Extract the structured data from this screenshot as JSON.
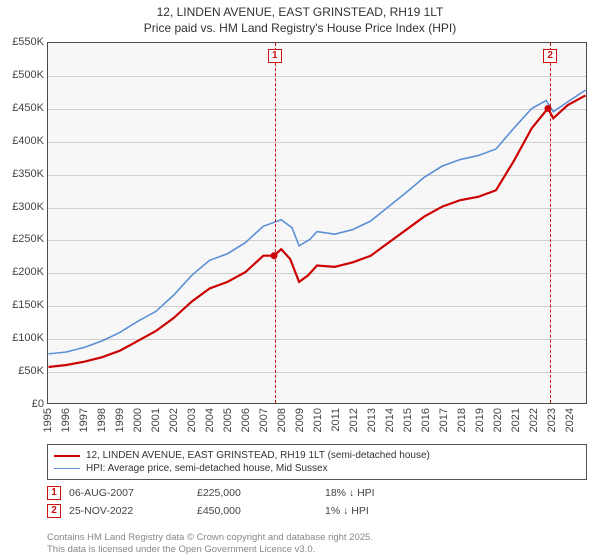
{
  "title": {
    "line1": "12, LINDEN AVENUE, EAST GRINSTEAD, RH19 1LT",
    "line2": "Price paid vs. HM Land Registry's House Price Index (HPI)"
  },
  "chart": {
    "type": "line",
    "background_color": "#f7f7f8",
    "border_color": "#4b4b4b",
    "grid_color": "#cfcfd2",
    "x": {
      "min": 1995,
      "max": 2025,
      "ticks": [
        1995,
        1996,
        1997,
        1998,
        1999,
        2000,
        2001,
        2002,
        2003,
        2004,
        2005,
        2006,
        2007,
        2008,
        2009,
        2010,
        2011,
        2012,
        2013,
        2014,
        2015,
        2016,
        2017,
        2018,
        2019,
        2020,
        2021,
        2022,
        2023,
        2024
      ]
    },
    "y": {
      "min": 0,
      "max": 550000,
      "ticks": [
        0,
        50000,
        100000,
        150000,
        200000,
        250000,
        300000,
        350000,
        400000,
        450000,
        500000,
        550000
      ],
      "tick_labels": [
        "£0",
        "£50K",
        "£100K",
        "£150K",
        "£200K",
        "£250K",
        "£300K",
        "£350K",
        "£400K",
        "£450K",
        "£500K",
        "£550K"
      ]
    },
    "series": [
      {
        "name": "property",
        "label": "12, LINDEN AVENUE, EAST GRINSTEAD, RH19 1LT (semi-detached house)",
        "color": "#cc0000",
        "width": 2.2,
        "points": [
          [
            1995,
            55000
          ],
          [
            1996,
            58000
          ],
          [
            1997,
            63000
          ],
          [
            1998,
            70000
          ],
          [
            1999,
            80000
          ],
          [
            2000,
            95000
          ],
          [
            2001,
            110000
          ],
          [
            2002,
            130000
          ],
          [
            2003,
            155000
          ],
          [
            2004,
            175000
          ],
          [
            2005,
            185000
          ],
          [
            2006,
            200000
          ],
          [
            2007,
            225000
          ],
          [
            2007.6,
            225000
          ],
          [
            2008,
            235000
          ],
          [
            2008.5,
            220000
          ],
          [
            2009,
            185000
          ],
          [
            2009.5,
            195000
          ],
          [
            2010,
            210000
          ],
          [
            2011,
            208000
          ],
          [
            2012,
            215000
          ],
          [
            2013,
            225000
          ],
          [
            2014,
            245000
          ],
          [
            2015,
            265000
          ],
          [
            2016,
            285000
          ],
          [
            2017,
            300000
          ],
          [
            2018,
            310000
          ],
          [
            2019,
            315000
          ],
          [
            2020,
            325000
          ],
          [
            2021,
            370000
          ],
          [
            2022,
            420000
          ],
          [
            2022.9,
            450000
          ],
          [
            2023.2,
            435000
          ],
          [
            2024,
            455000
          ],
          [
            2025,
            470000
          ]
        ]
      },
      {
        "name": "hpi",
        "label": "HPI: Average price, semi-detached house, Mid Sussex",
        "color": "#5b8fd6",
        "width": 1.6,
        "points": [
          [
            1995,
            75000
          ],
          [
            1996,
            78000
          ],
          [
            1997,
            85000
          ],
          [
            1998,
            95000
          ],
          [
            1999,
            108000
          ],
          [
            2000,
            125000
          ],
          [
            2001,
            140000
          ],
          [
            2002,
            165000
          ],
          [
            2003,
            195000
          ],
          [
            2004,
            218000
          ],
          [
            2005,
            228000
          ],
          [
            2006,
            245000
          ],
          [
            2007,
            270000
          ],
          [
            2008,
            280000
          ],
          [
            2008.6,
            268000
          ],
          [
            2009,
            240000
          ],
          [
            2009.6,
            250000
          ],
          [
            2010,
            262000
          ],
          [
            2011,
            258000
          ],
          [
            2012,
            265000
          ],
          [
            2013,
            278000
          ],
          [
            2014,
            300000
          ],
          [
            2015,
            322000
          ],
          [
            2016,
            345000
          ],
          [
            2017,
            362000
          ],
          [
            2018,
            372000
          ],
          [
            2019,
            378000
          ],
          [
            2020,
            388000
          ],
          [
            2021,
            420000
          ],
          [
            2022,
            450000
          ],
          [
            2022.8,
            462000
          ],
          [
            2023.2,
            445000
          ],
          [
            2024,
            460000
          ],
          [
            2025,
            478000
          ]
        ]
      }
    ],
    "sale_markers": [
      {
        "id": "1",
        "x": 2007.6,
        "y": 225000
      },
      {
        "id": "2",
        "x": 2022.9,
        "y": 450000
      }
    ]
  },
  "legend": {
    "rows": [
      {
        "color": "#cc0000",
        "width": 2.2,
        "label": "12, LINDEN AVENUE, EAST GRINSTEAD, RH19 1LT (semi-detached house)"
      },
      {
        "color": "#5b8fd6",
        "width": 1.6,
        "label": "HPI: Average price, semi-detached house, Mid Sussex"
      }
    ]
  },
  "annotations": [
    {
      "id": "1",
      "date": "06-AUG-2007",
      "price": "£225,000",
      "delta": "18% ↓ HPI"
    },
    {
      "id": "2",
      "date": "25-NOV-2022",
      "price": "£450,000",
      "delta": "1% ↓ HPI"
    }
  ],
  "footer": {
    "line1": "Contains HM Land Registry data © Crown copyright and database right 2025.",
    "line2": "This data is licensed under the Open Government Licence v3.0."
  },
  "style": {
    "title_fontsize": 12,
    "tick_fontsize": 11,
    "legend_fontsize": 10,
    "annot_fontsize": 10.5,
    "footer_fontsize": 9.5,
    "footer_color": "#888888"
  }
}
